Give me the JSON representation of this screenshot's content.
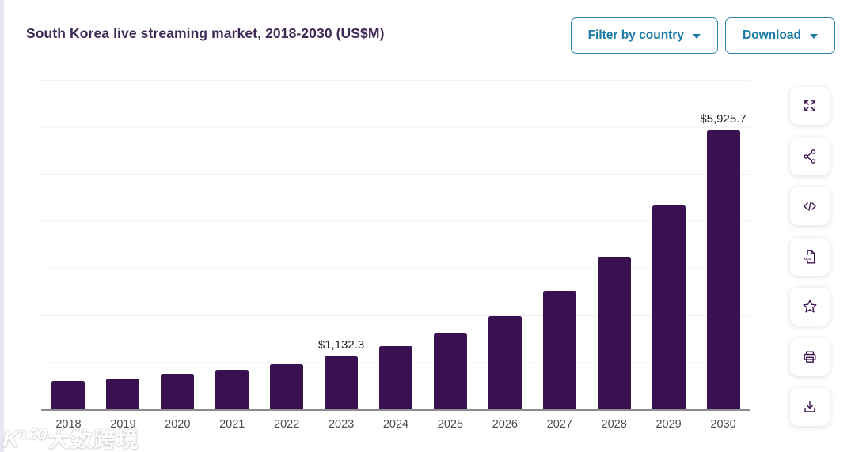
{
  "header": {
    "title": "South Korea live streaming market, 2018-2030 (US$M)",
    "filter_button": "Filter by country",
    "download_button": "Download"
  },
  "chart_data": {
    "type": "bar",
    "title": "South Korea live streaming market, 2018-2030 (US$M)",
    "unit": "US$M",
    "categories": [
      "2018",
      "2019",
      "2020",
      "2021",
      "2022",
      "2023",
      "2024",
      "2025",
      "2026",
      "2027",
      "2028",
      "2029",
      "2030"
    ],
    "values": [
      600,
      655,
      750,
      845,
      955,
      1132.3,
      1335,
      1610,
      1980,
      2510,
      3245,
      4330,
      5925.7
    ],
    "data_labels": {
      "2023": "$1,132.3",
      "2030": "$5,925.7"
    },
    "ylim": [
      0,
      7000
    ],
    "gridline_interval": 1000,
    "grid": true,
    "legend": false,
    "bar_color": "#3a1150"
  },
  "toolbar": {
    "icons": [
      "fullscreen",
      "share",
      "embed-code",
      "xls-export",
      "favorite",
      "print",
      "download"
    ]
  },
  "watermark": {
    "logo": "K¹⁰⁰",
    "text": "大数跨境"
  },
  "colors": {
    "accent_teal": "#1b7aa6",
    "bar": "#3a1150",
    "title_text": "#3f2a56",
    "axis_label": "#4c4c4c"
  }
}
